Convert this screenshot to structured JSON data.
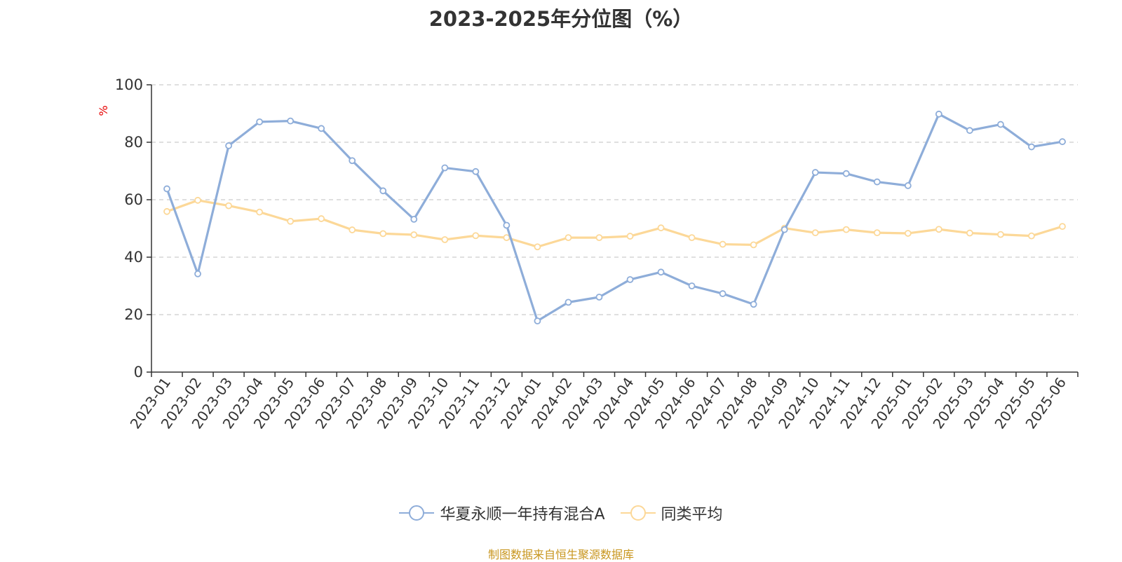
{
  "chart_data": {
    "type": "line",
    "title": "2023-2025年分位图（%）",
    "ylabel": "%",
    "xlabel": "",
    "ylim": [
      0,
      100
    ],
    "yticks": [
      0,
      20,
      40,
      60,
      80,
      100
    ],
    "grid": true,
    "legend_position": "bottom-center",
    "categories": [
      "2023-01",
      "2023-02",
      "2023-03",
      "2023-04",
      "2023-05",
      "2023-06",
      "2023-07",
      "2023-08",
      "2023-09",
      "2023-10",
      "2023-11",
      "2023-12",
      "2024-01",
      "2024-02",
      "2024-03",
      "2024-04",
      "2024-05",
      "2024-06",
      "2024-07",
      "2024-08",
      "2024-09",
      "2024-10",
      "2024-11",
      "2024-12",
      "2025-01",
      "2025-02",
      "2025-03",
      "2025-04",
      "2025-05",
      "2025-06"
    ],
    "series": [
      {
        "name": "华夏永顺一年持有混合A",
        "color": "#8eadd9",
        "values": [
          63.8,
          34.2,
          78.8,
          87.1,
          87.4,
          84.8,
          73.6,
          63.1,
          53.2,
          71.1,
          69.8,
          51.1,
          17.8,
          24.3,
          26.1,
          32.2,
          34.8,
          30.0,
          27.3,
          23.6,
          49.6,
          69.5,
          69.1,
          66.2,
          64.9,
          89.8,
          84.1,
          86.2,
          78.4,
          80.2
        ]
      },
      {
        "name": "同类平均",
        "color": "#fcd898",
        "values": [
          55.9,
          59.8,
          57.9,
          55.7,
          52.5,
          53.4,
          49.5,
          48.2,
          47.8,
          46.1,
          47.5,
          46.8,
          43.6,
          46.8,
          46.8,
          47.3,
          50.2,
          46.8,
          44.5,
          44.3,
          50.1,
          48.5,
          49.6,
          48.5,
          48.3,
          49.7,
          48.4,
          47.9,
          47.4,
          50.7
        ]
      }
    ]
  },
  "source_text": "制图数据来自恒生聚源数据库",
  "colors": {
    "axis": "#333333",
    "grid": "#cccccc",
    "ylabel": "#e60000",
    "source": "#c8961e"
  }
}
